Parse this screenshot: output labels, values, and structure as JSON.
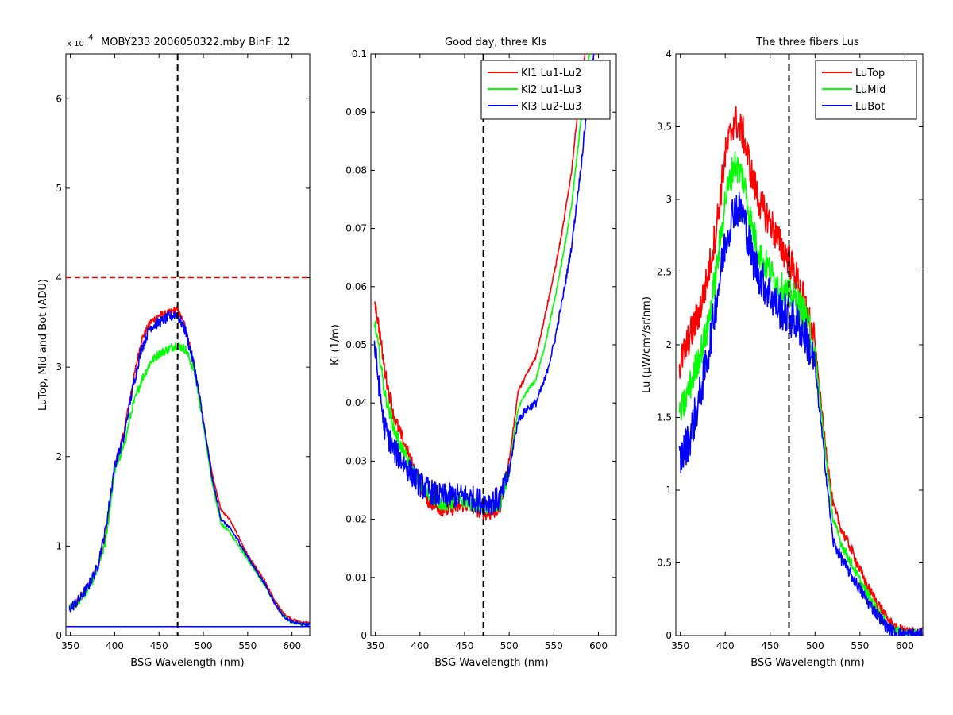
{
  "chart_data": [
    {
      "type": "line",
      "title": "MOBY233  2006050322.mby BinF: 12",
      "exponent_label": "x 10",
      "exponent_power": "4",
      "xlabel": "BSG Wavelength (nm)",
      "ylabel": "LuTop, Mid and Bot (ADU)",
      "xlim": [
        345,
        620
      ],
      "ylim": [
        0,
        6.5
      ],
      "xticks": [
        "350",
        "400",
        "450",
        "500",
        "550",
        "600"
      ],
      "xtick_values": [
        350,
        400,
        450,
        500,
        550,
        600
      ],
      "yticks": [
        "0",
        "1",
        "2",
        "3",
        "4",
        "5",
        "6"
      ],
      "ytick_values": [
        0,
        1,
        2,
        3,
        4,
        5,
        6
      ],
      "grid": false,
      "vline": 471,
      "reference_lines": [
        {
          "y": 4.0,
          "style": "dashed",
          "color": "#ff0000"
        },
        {
          "y": 0.1,
          "style": "solid",
          "color": "#0000ff"
        }
      ],
      "series": [
        {
          "color": "#ff0000",
          "noise": 0.04,
          "x": [
            349,
            360,
            370,
            380,
            390,
            400,
            410,
            420,
            430,
            440,
            450,
            460,
            470,
            480,
            490,
            500,
            510,
            520,
            530,
            540,
            550,
            560,
            570,
            580,
            590,
            600,
            610,
            620
          ],
          "values": [
            0.3,
            0.4,
            0.55,
            0.75,
            1.1,
            1.9,
            2.25,
            2.8,
            3.3,
            3.5,
            3.58,
            3.6,
            3.65,
            3.45,
            3.0,
            2.4,
            1.8,
            1.4,
            1.3,
            1.1,
            0.9,
            0.75,
            0.6,
            0.4,
            0.25,
            0.18,
            0.15,
            0.14
          ]
        },
        {
          "color": "#00ff00",
          "noise": 0.05,
          "x": [
            349,
            360,
            370,
            380,
            390,
            400,
            410,
            420,
            430,
            440,
            450,
            460,
            470,
            480,
            490,
            500,
            510,
            520,
            530,
            540,
            550,
            560,
            570,
            580,
            590,
            600,
            610,
            620
          ],
          "values": [
            0.3,
            0.38,
            0.52,
            0.72,
            1.05,
            1.85,
            2.1,
            2.55,
            2.85,
            3.05,
            3.15,
            3.2,
            3.25,
            3.2,
            2.95,
            2.35,
            1.7,
            1.25,
            1.15,
            1.0,
            0.85,
            0.7,
            0.55,
            0.37,
            0.22,
            0.15,
            0.13,
            0.12
          ]
        },
        {
          "color": "#0000ff",
          "noise": 0.06,
          "x": [
            349,
            360,
            370,
            380,
            390,
            400,
            410,
            420,
            430,
            440,
            450,
            460,
            470,
            480,
            490,
            500,
            510,
            520,
            530,
            540,
            550,
            560,
            570,
            580,
            590,
            600,
            610,
            620
          ],
          "values": [
            0.3,
            0.4,
            0.55,
            0.75,
            1.2,
            1.9,
            2.2,
            2.75,
            3.2,
            3.45,
            3.5,
            3.55,
            3.6,
            3.4,
            3.0,
            2.4,
            1.75,
            1.3,
            1.2,
            1.05,
            0.88,
            0.72,
            0.57,
            0.37,
            0.22,
            0.15,
            0.13,
            0.12
          ]
        }
      ]
    },
    {
      "type": "line",
      "title": "Good day, three Kls",
      "xlabel": "BSG Wavelength (nm)",
      "ylabel": "Kl (1/m)",
      "xlim": [
        345,
        620
      ],
      "ylim": [
        0,
        0.1
      ],
      "xticks": [
        "350",
        "400",
        "450",
        "500",
        "550",
        "600"
      ],
      "xtick_values": [
        350,
        400,
        450,
        500,
        550,
        600
      ],
      "yticks": [
        "0",
        "0.01",
        "0.02",
        "0.03",
        "0.04",
        "0.05",
        "0.06",
        "0.07",
        "0.08",
        "0.09",
        "0.1"
      ],
      "ytick_values": [
        0,
        0.01,
        0.02,
        0.03,
        0.04,
        0.05,
        0.06,
        0.07,
        0.08,
        0.09,
        0.1
      ],
      "grid": false,
      "vline": 471,
      "legend_position": "top-right",
      "series": [
        {
          "name": "Kl1 Lu1-Lu2",
          "color": "#ff0000",
          "noise": 0.0012,
          "x": [
            349,
            355,
            360,
            370,
            380,
            390,
            400,
            410,
            420,
            430,
            440,
            450,
            460,
            470,
            480,
            490,
            500,
            505,
            510,
            520,
            530,
            540,
            550,
            560,
            570,
            580,
            590
          ],
          "values": [
            0.058,
            0.052,
            0.046,
            0.038,
            0.034,
            0.03,
            0.026,
            0.023,
            0.022,
            0.0215,
            0.022,
            0.0225,
            0.022,
            0.021,
            0.021,
            0.022,
            0.03,
            0.036,
            0.042,
            0.045,
            0.048,
            0.055,
            0.062,
            0.07,
            0.08,
            0.095,
            0.105
          ]
        },
        {
          "name": "Kl2 Lu1-Lu3",
          "color": "#00ff00",
          "noise": 0.0012,
          "x": [
            349,
            355,
            360,
            370,
            380,
            390,
            400,
            410,
            420,
            430,
            440,
            450,
            460,
            470,
            480,
            490,
            500,
            505,
            510,
            520,
            530,
            540,
            550,
            560,
            570,
            580,
            590,
            595
          ],
          "values": [
            0.054,
            0.048,
            0.042,
            0.036,
            0.032,
            0.029,
            0.026,
            0.024,
            0.023,
            0.0225,
            0.023,
            0.0232,
            0.0225,
            0.022,
            0.022,
            0.0225,
            0.028,
            0.034,
            0.039,
            0.042,
            0.044,
            0.05,
            0.057,
            0.065,
            0.074,
            0.088,
            0.1,
            0.105
          ]
        },
        {
          "name": "Kl3 Lu2-Lu3",
          "color": "#0000ff",
          "noise": 0.0022,
          "x": [
            349,
            355,
            360,
            370,
            380,
            390,
            400,
            410,
            420,
            430,
            440,
            450,
            460,
            470,
            480,
            490,
            500,
            505,
            510,
            520,
            530,
            540,
            550,
            560,
            570,
            580,
            590,
            600
          ],
          "values": [
            0.05,
            0.042,
            0.036,
            0.032,
            0.03,
            0.028,
            0.026,
            0.025,
            0.024,
            0.024,
            0.024,
            0.024,
            0.0235,
            0.023,
            0.023,
            0.0235,
            0.028,
            0.033,
            0.037,
            0.039,
            0.04,
            0.044,
            0.05,
            0.058,
            0.067,
            0.08,
            0.095,
            0.105
          ]
        }
      ]
    },
    {
      "type": "line",
      "title": "The three fibers Lus",
      "xlabel": "BSG Wavelength (nm)",
      "ylabel": "Lu (µW/cm²/sr/nm)",
      "xlim": [
        345,
        620
      ],
      "ylim": [
        0,
        4
      ],
      "xticks": [
        "350",
        "400",
        "450",
        "500",
        "550",
        "600"
      ],
      "xtick_values": [
        350,
        400,
        450,
        500,
        550,
        600
      ],
      "yticks": [
        "0",
        "0.5",
        "1",
        "1.5",
        "2",
        "2.5",
        "3",
        "3.5",
        "4"
      ],
      "ytick_values": [
        0,
        0.5,
        1,
        1.5,
        2,
        2.5,
        3,
        3.5,
        4
      ],
      "grid": false,
      "vline": 471,
      "legend_position": "top-right",
      "series": [
        {
          "name": "LuTop",
          "color": "#ff0000",
          "noise": 0.12,
          "x": [
            349,
            360,
            370,
            380,
            390,
            400,
            410,
            420,
            430,
            440,
            450,
            460,
            470,
            480,
            490,
            500,
            510,
            520,
            530,
            540,
            550,
            560,
            570,
            580,
            590,
            600,
            610,
            620
          ],
          "values": [
            1.85,
            2.05,
            2.2,
            2.45,
            2.8,
            3.3,
            3.55,
            3.45,
            3.15,
            2.95,
            2.85,
            2.7,
            2.6,
            2.45,
            2.25,
            2.0,
            1.4,
            0.9,
            0.72,
            0.6,
            0.45,
            0.32,
            0.22,
            0.12,
            0.05,
            0.03,
            0.025,
            0.02
          ]
        },
        {
          "name": "LuMid",
          "color": "#00ff00",
          "noise": 0.11,
          "x": [
            349,
            360,
            370,
            380,
            390,
            400,
            410,
            420,
            430,
            440,
            450,
            460,
            470,
            480,
            490,
            500,
            510,
            520,
            530,
            540,
            550,
            560,
            570,
            580,
            590,
            600,
            610,
            620
          ],
          "values": [
            1.5,
            1.7,
            1.9,
            2.1,
            2.5,
            3.0,
            3.25,
            3.15,
            2.8,
            2.6,
            2.5,
            2.4,
            2.35,
            2.3,
            2.2,
            1.95,
            1.35,
            0.8,
            0.62,
            0.5,
            0.38,
            0.27,
            0.17,
            0.08,
            0.03,
            0.015,
            0.01,
            0.01
          ]
        },
        {
          "name": "LuBot",
          "color": "#0000ff",
          "noise": 0.14,
          "x": [
            349,
            360,
            370,
            380,
            390,
            400,
            410,
            420,
            430,
            440,
            450,
            460,
            470,
            480,
            490,
            500,
            510,
            520,
            530,
            540,
            550,
            560,
            570,
            580,
            590,
            600,
            610,
            620
          ],
          "values": [
            1.2,
            1.35,
            1.6,
            1.9,
            2.3,
            2.7,
            2.95,
            2.9,
            2.6,
            2.45,
            2.35,
            2.25,
            2.2,
            2.15,
            2.05,
            1.85,
            1.25,
            0.65,
            0.52,
            0.42,
            0.32,
            0.22,
            0.14,
            0.06,
            0.02,
            0.01,
            0.008,
            0.005
          ]
        }
      ]
    }
  ]
}
